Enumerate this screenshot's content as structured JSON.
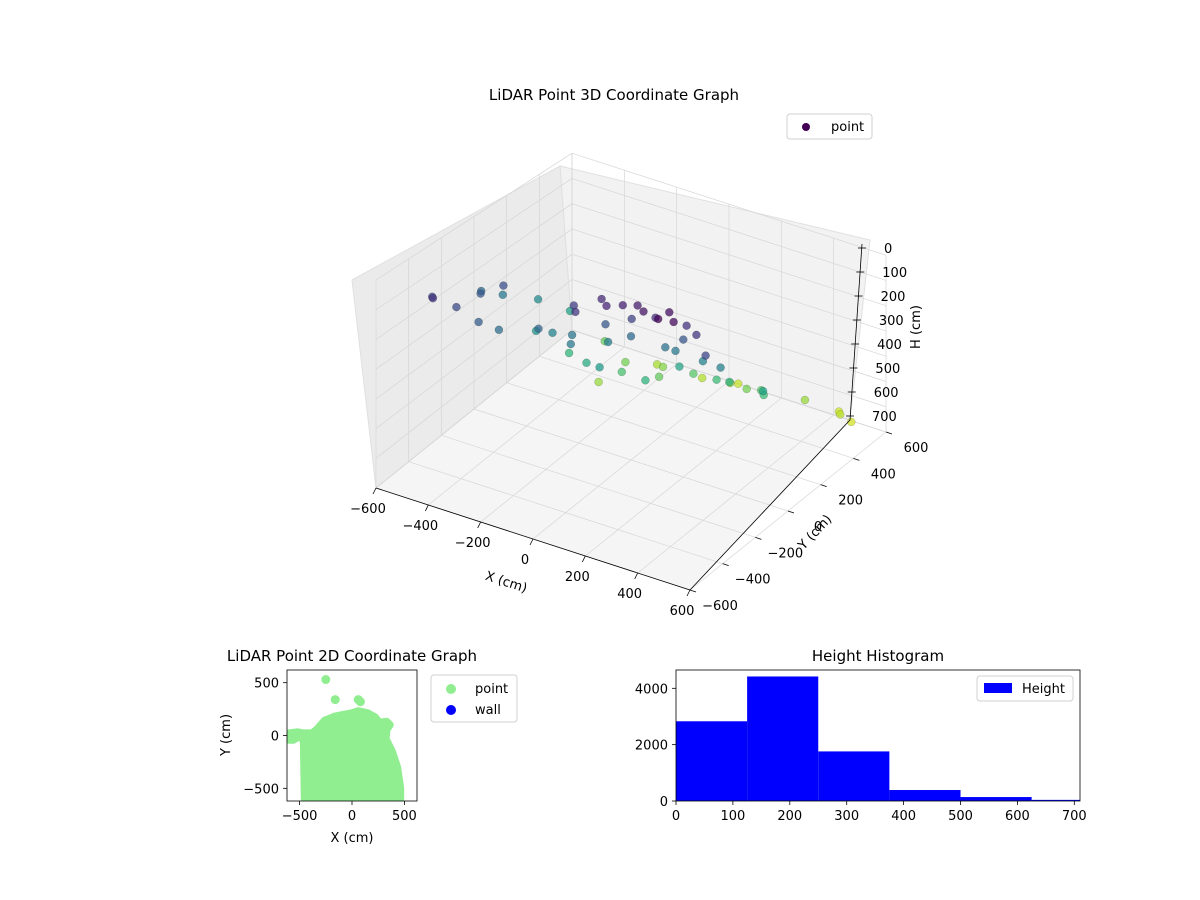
{
  "chart_data": [
    {
      "type": "scatter",
      "title": "LiDAR Point 3D Coordinate Graph",
      "xlabel": "X (cm)",
      "ylabel": "Y (cm)",
      "zlabel": "H (cm)",
      "xlim": [
        -600,
        600
      ],
      "ylim": [
        -600,
        600
      ],
      "zlim": [
        0,
        700
      ],
      "z_inverted": true,
      "xticks": [
        "−600",
        "−400",
        "−200",
        "0",
        "200",
        "400",
        "600"
      ],
      "yticks": [
        "−600",
        "−400",
        "−200",
        "0",
        "200",
        "400",
        "600"
      ],
      "zticks": [
        "0",
        "100",
        "200",
        "300",
        "400",
        "500",
        "600",
        "700"
      ],
      "grid": true,
      "colormap": "viridis",
      "legend": {
        "placement": "upper-right",
        "entries": [
          "point"
        ],
        "marker_color": "#440154"
      },
      "series": [
        {
          "name": "point",
          "note_points": "representative sample of the dense point cloud",
          "points": [
            [
              -560,
              20,
              250
            ],
            [
              -540,
              -80,
              300
            ],
            [
              -500,
              120,
              200
            ],
            [
              -480,
              -200,
              350
            ],
            [
              -450,
              60,
              180
            ],
            [
              -420,
              -300,
              420
            ],
            [
              -400,
              -60,
              380
            ],
            [
              -380,
              200,
              260
            ],
            [
              -350,
              -400,
              560
            ],
            [
              -330,
              -150,
              480
            ],
            [
              -300,
              0,
              330
            ],
            [
              -280,
              -250,
              620
            ],
            [
              -260,
              150,
              240
            ],
            [
              -240,
              -350,
              580
            ],
            [
              -220,
              -80,
              450
            ],
            [
              -200,
              -480,
              640
            ],
            [
              -180,
              80,
              300
            ],
            [
              -160,
              -200,
              520
            ],
            [
              -140,
              -420,
              600
            ],
            [
              -120,
              0,
              400
            ],
            [
              -100,
              180,
              120
            ],
            [
              -80,
              -300,
              560
            ],
            [
              -60,
              60,
              200
            ],
            [
              -40,
              -500,
              650
            ],
            [
              -20,
              -120,
              470
            ],
            [
              0,
              150,
              80
            ],
            [
              20,
              -350,
              540
            ],
            [
              40,
              60,
              150
            ],
            [
              60,
              -200,
              430
            ],
            [
              80,
              -480,
              620
            ],
            [
              100,
              120,
              60
            ],
            [
              120,
              -80,
              300
            ],
            [
              140,
              -300,
              500
            ],
            [
              160,
              180,
              40
            ],
            [
              180,
              -420,
              580
            ],
            [
              200,
              0,
              200
            ],
            [
              220,
              -250,
              460
            ],
            [
              240,
              150,
              30
            ],
            [
              260,
              -380,
              540
            ],
            [
              280,
              -100,
              320
            ],
            [
              300,
              80,
              120
            ],
            [
              320,
              -300,
              500
            ],
            [
              340,
              -520,
              620
            ],
            [
              360,
              120,
              160
            ],
            [
              380,
              -200,
              420
            ],
            [
              -50,
              100,
              90
            ],
            [
              50,
              130,
              70
            ],
            [
              150,
              90,
              100
            ],
            [
              250,
              60,
              110
            ],
            [
              -150,
              110,
              140
            ],
            [
              0,
              0,
              250
            ],
            [
              100,
              -50,
              280
            ],
            [
              -100,
              -20,
              310
            ],
            [
              200,
              -120,
              330
            ],
            [
              -200,
              40,
              290
            ],
            [
              450,
              -560,
              660
            ],
            [
              420,
              -600,
              680
            ],
            [
              480,
              -580,
              690
            ],
            [
              -560,
              320,
              150
            ],
            [
              -520,
              380,
              120
            ],
            [
              -480,
              300,
              170
            ],
            [
              -420,
              260,
              220
            ],
            [
              300,
              220,
              20
            ],
            [
              260,
              250,
              10
            ],
            [
              60,
              -560,
              670
            ]
          ]
        }
      ]
    },
    {
      "type": "scatter",
      "title": "LiDAR Point 2D Coordinate Graph",
      "xlabel": "X (cm)",
      "ylabel": "Y (cm)",
      "xlim": [
        -620,
        620
      ],
      "ylim": [
        -620,
        620
      ],
      "xticks": [
        "−500",
        "0",
        "500"
      ],
      "yticks": [
        "−500",
        "0",
        "500"
      ],
      "legend": {
        "placement": "outside-right",
        "entries": [
          "point",
          "wall"
        ]
      },
      "series": [
        {
          "name": "point",
          "color": "#90ee90",
          "note_points": "dense filled region; outline plus isolated outliers",
          "outline": [
            [
              -600,
              -5
            ],
            [
              -600,
              -40
            ],
            [
              -560,
              -40
            ],
            [
              -520,
              -15
            ],
            [
              -480,
              -20
            ],
            [
              -460,
              -40
            ],
            [
              -450,
              -600
            ],
            [
              460,
              -600
            ],
            [
              460,
              -500
            ],
            [
              430,
              -300
            ],
            [
              380,
              -150
            ],
            [
              320,
              -30
            ],
            [
              330,
              60
            ],
            [
              360,
              100
            ],
            [
              330,
              130
            ],
            [
              260,
              120
            ],
            [
              220,
              170
            ],
            [
              150,
              210
            ],
            [
              60,
              230
            ],
            [
              0,
              210
            ],
            [
              -60,
              200
            ],
            [
              -160,
              180
            ],
            [
              -260,
              140
            ],
            [
              -330,
              60
            ],
            [
              -380,
              20
            ],
            [
              -470,
              20
            ],
            [
              -520,
              30
            ],
            [
              -600,
              20
            ]
          ],
          "outliers": [
            [
              -250,
              530
            ],
            [
              -160,
              340
            ],
            [
              60,
              340
            ],
            [
              80,
              320
            ],
            [
              -600,
              5
            ]
          ]
        },
        {
          "name": "wall",
          "color": "#0000ff",
          "points": []
        }
      ]
    },
    {
      "type": "bar",
      "title": "Height Histogram",
      "xlim": [
        0,
        710
      ],
      "ylim": [
        0,
        4650
      ],
      "xticks": [
        "0",
        "100",
        "200",
        "300",
        "400",
        "500",
        "600",
        "700"
      ],
      "yticks": [
        "0",
        "2000",
        "4000"
      ],
      "legend": {
        "placement": "upper-right",
        "entries": [
          "Height"
        ]
      },
      "color": "#0000ff",
      "series": [
        {
          "name": "Height",
          "bins": [
            {
              "from": 0,
              "to": 125,
              "count": 2830
            },
            {
              "from": 125,
              "to": 250,
              "count": 4420
            },
            {
              "from": 250,
              "to": 375,
              "count": 1760
            },
            {
              "from": 375,
              "to": 500,
              "count": 390
            },
            {
              "from": 500,
              "to": 625,
              "count": 140
            },
            {
              "from": 625,
              "to": 710,
              "count": 40
            }
          ]
        }
      ]
    }
  ]
}
